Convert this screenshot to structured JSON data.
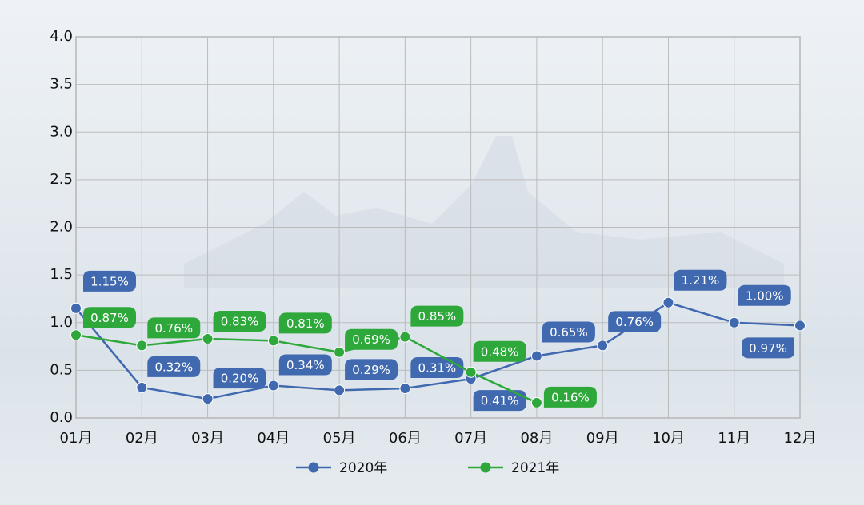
{
  "chart_data": {
    "type": "line",
    "categories": [
      "01月",
      "02月",
      "03月",
      "04月",
      "05月",
      "06月",
      "07月",
      "08月",
      "09月",
      "10月",
      "11月",
      "12月"
    ],
    "series": [
      {
        "name": "2020年",
        "color": "#4169b0",
        "values": [
          1.15,
          0.32,
          0.2,
          0.34,
          0.29,
          0.31,
          0.41,
          0.65,
          0.76,
          1.21,
          1.0,
          0.97
        ],
        "value_labels": [
          "1.15%",
          "0.32%",
          "0.20%",
          "0.34%",
          "0.29%",
          "0.31%",
          "0.41%",
          "0.65%",
          "0.76%",
          "1.21%",
          "1.00%",
          "0.97%"
        ]
      },
      {
        "name": "2021年",
        "color": "#2ea83a",
        "values": [
          0.87,
          0.76,
          0.83,
          0.81,
          0.69,
          0.85,
          0.48,
          0.16,
          null,
          null,
          null,
          null
        ],
        "value_labels": [
          "0.87%",
          "0.76%",
          "0.83%",
          "0.81%",
          "0.69%",
          "0.85%",
          "0.48%",
          "0.16%",
          null,
          null,
          null,
          null
        ]
      }
    ],
    "ylim": [
      0,
      4
    ],
    "yticks": [
      {
        "value": 0,
        "label": "0.0"
      },
      0.5,
      {
        "value": 1,
        "label": "1.0"
      },
      1.5,
      {
        "value": 2,
        "label": "2.0"
      },
      2.5,
      {
        "value": 3,
        "label": "3.0"
      },
      3.5,
      {
        "value": 4,
        "label": "4.0"
      }
    ],
    "grid": true,
    "legend": "bottom"
  }
}
